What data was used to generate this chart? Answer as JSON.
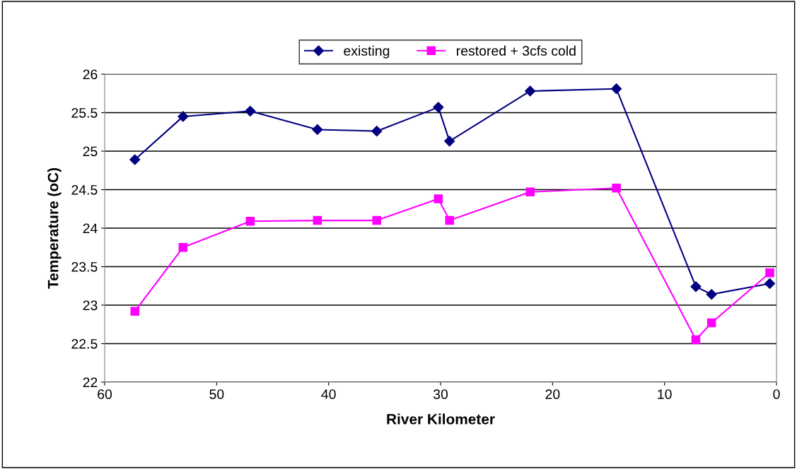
{
  "chart_data": {
    "type": "line",
    "xlabel": "River Kilometer",
    "ylabel": "Temperature (oC)",
    "xlim": [
      60,
      0
    ],
    "xticks": [
      60,
      50,
      40,
      30,
      20,
      10,
      0
    ],
    "ylim": [
      22,
      26
    ],
    "yticks": [
      22,
      22.5,
      23,
      23.5,
      24,
      24.5,
      25,
      25.5,
      26
    ],
    "grid": "y",
    "legend": "top",
    "line_style": "solid",
    "series": [
      {
        "name": "existing",
        "color": "#000080",
        "marker": "diamond",
        "x": [
          57.3,
          53.0,
          47.0,
          41.0,
          35.7,
          30.2,
          29.2,
          22.0,
          14.3,
          7.2,
          5.8,
          0.6
        ],
        "values": [
          24.89,
          25.45,
          25.52,
          25.28,
          25.26,
          25.57,
          25.13,
          25.78,
          25.81,
          23.24,
          23.14,
          23.28
        ]
      },
      {
        "name": "restored + 3cfs cold",
        "color": "#ff00ff",
        "marker": "square",
        "x": [
          57.3,
          53.0,
          47.0,
          41.0,
          35.7,
          30.2,
          29.2,
          22.0,
          14.3,
          7.2,
          5.8,
          0.6
        ],
        "values": [
          22.92,
          23.75,
          24.09,
          24.1,
          24.1,
          24.38,
          24.1,
          24.47,
          24.52,
          22.55,
          22.77,
          23.42
        ]
      }
    ]
  }
}
